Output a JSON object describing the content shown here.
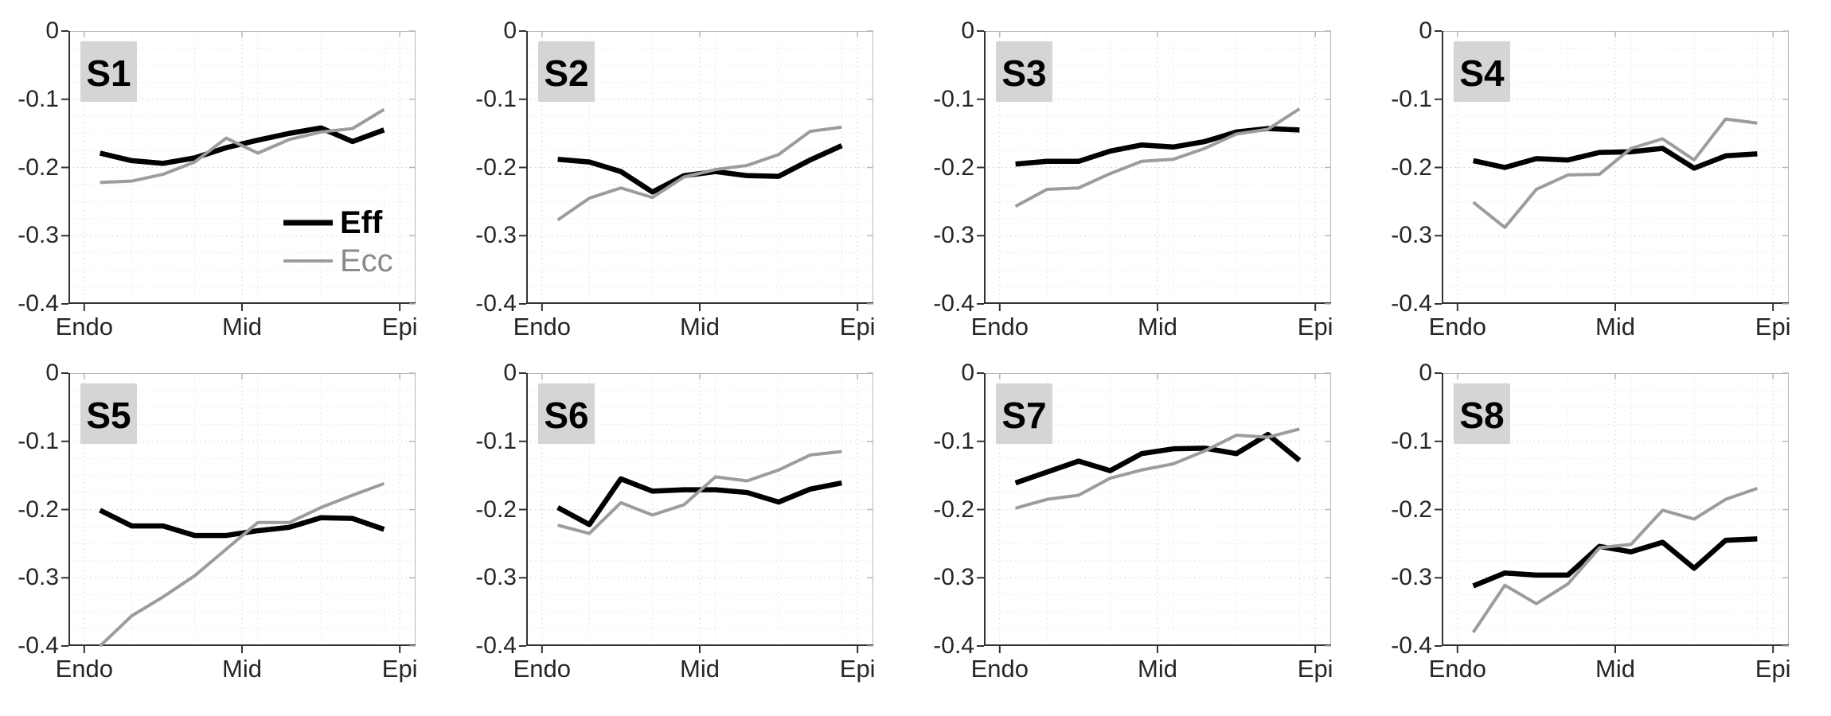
{
  "figure": {
    "background": "#ffffff",
    "rows": 2,
    "cols": 4,
    "ylim": [
      -0.4,
      0
    ],
    "xlim": [
      0,
      11
    ],
    "yticks": [
      0,
      -0.1,
      -0.2,
      -0.3,
      -0.4
    ],
    "ytick_labels": [
      "0",
      "-0.1",
      "-0.2",
      "-0.3",
      "-0.4"
    ],
    "xticks": [
      0.5,
      5.5,
      10.5
    ],
    "xtick_labels": [
      "Endo",
      "Mid",
      "Epi"
    ],
    "x_points": [
      1,
      2,
      3,
      4,
      5,
      6,
      7,
      8,
      9,
      10
    ],
    "grid": {
      "major_y": [
        -0.1,
        -0.2,
        -0.3
      ],
      "minor_y_step": 0.025,
      "minor_x": [
        2,
        4,
        6,
        8,
        10
      ],
      "style": "dotted"
    },
    "colors": {
      "eff_line": "#000000",
      "ecc_line": "#9c9c9c",
      "ecc_text": "#8a8a8a",
      "axis": "#333333",
      "box_light": "#b8b8b8",
      "grid_major": "#cdcdcd",
      "grid_minor": "#e2e2e2",
      "tick_label": "#262626",
      "badge_bg": "#d5d5d5",
      "badge_text": "#000000"
    }
  },
  "legend": {
    "eff_label": "Eff",
    "ecc_label": "Ecc",
    "location": "lower-right-of-S1"
  },
  "chart_data": [
    {
      "type": "line",
      "title": "S1",
      "legend": true,
      "series": [
        {
          "name": "Eff",
          "values": [
            -0.179,
            -0.19,
            -0.194,
            -0.186,
            -0.171,
            -0.16,
            -0.15,
            -0.142,
            -0.162,
            -0.145
          ]
        },
        {
          "name": "Ecc",
          "values": [
            -0.222,
            -0.22,
            -0.21,
            -0.192,
            -0.157,
            -0.179,
            -0.159,
            -0.148,
            -0.143,
            -0.115
          ]
        }
      ]
    },
    {
      "type": "line",
      "title": "S2",
      "legend": false,
      "series": [
        {
          "name": "Eff",
          "values": [
            -0.188,
            -0.192,
            -0.206,
            -0.236,
            -0.212,
            -0.206,
            -0.212,
            -0.213,
            -0.189,
            -0.168
          ]
        },
        {
          "name": "Ecc",
          "values": [
            -0.277,
            -0.245,
            -0.23,
            -0.244,
            -0.214,
            -0.203,
            -0.197,
            -0.181,
            -0.147,
            -0.141
          ]
        }
      ]
    },
    {
      "type": "line",
      "title": "S3",
      "legend": false,
      "series": [
        {
          "name": "Eff",
          "values": [
            -0.195,
            -0.191,
            -0.191,
            -0.176,
            -0.167,
            -0.17,
            -0.162,
            -0.148,
            -0.143,
            -0.145
          ]
        },
        {
          "name": "Ecc",
          "values": [
            -0.257,
            -0.232,
            -0.23,
            -0.209,
            -0.191,
            -0.188,
            -0.172,
            -0.151,
            -0.144,
            -0.114
          ]
        }
      ]
    },
    {
      "type": "line",
      "title": "S4",
      "legend": false,
      "series": [
        {
          "name": "Eff",
          "values": [
            -0.19,
            -0.2,
            -0.187,
            -0.189,
            -0.178,
            -0.177,
            -0.172,
            -0.201,
            -0.183,
            -0.18
          ]
        },
        {
          "name": "Ecc",
          "values": [
            -0.251,
            -0.288,
            -0.232,
            -0.211,
            -0.21,
            -0.172,
            -0.158,
            -0.189,
            -0.129,
            -0.135
          ]
        }
      ]
    },
    {
      "type": "line",
      "title": "S5",
      "legend": false,
      "series": [
        {
          "name": "Eff",
          "values": [
            -0.201,
            -0.224,
            -0.224,
            -0.238,
            -0.238,
            -0.231,
            -0.226,
            -0.212,
            -0.213,
            -0.229
          ]
        },
        {
          "name": "Ecc",
          "values": [
            -0.4,
            -0.356,
            -0.328,
            -0.297,
            -0.258,
            -0.219,
            -0.219,
            -0.197,
            -0.179,
            -0.162
          ]
        }
      ]
    },
    {
      "type": "line",
      "title": "S6",
      "legend": false,
      "series": [
        {
          "name": "Eff",
          "values": [
            -0.197,
            -0.222,
            -0.155,
            -0.173,
            -0.171,
            -0.171,
            -0.175,
            -0.189,
            -0.17,
            -0.161
          ]
        },
        {
          "name": "Ecc",
          "values": [
            -0.223,
            -0.235,
            -0.19,
            -0.208,
            -0.193,
            -0.152,
            -0.158,
            -0.142,
            -0.12,
            -0.115
          ]
        }
      ]
    },
    {
      "type": "line",
      "title": "S7",
      "legend": false,
      "series": [
        {
          "name": "Eff",
          "values": [
            -0.161,
            -0.145,
            -0.129,
            -0.143,
            -0.118,
            -0.111,
            -0.11,
            -0.118,
            -0.09,
            -0.128
          ]
        },
        {
          "name": "Ecc",
          "values": [
            -0.198,
            -0.185,
            -0.179,
            -0.154,
            -0.142,
            -0.133,
            -0.114,
            -0.091,
            -0.094,
            -0.082
          ]
        }
      ]
    },
    {
      "type": "line",
      "title": "S8",
      "legend": false,
      "series": [
        {
          "name": "Eff",
          "values": [
            -0.312,
            -0.293,
            -0.296,
            -0.296,
            -0.254,
            -0.262,
            -0.248,
            -0.286,
            -0.245,
            -0.243
          ]
        },
        {
          "name": "Ecc",
          "values": [
            -0.38,
            -0.311,
            -0.338,
            -0.309,
            -0.256,
            -0.251,
            -0.201,
            -0.214,
            -0.185,
            -0.169
          ]
        }
      ]
    }
  ]
}
